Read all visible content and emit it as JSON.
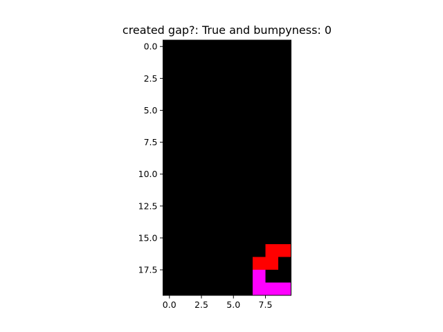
{
  "chart_data": {
    "type": "heatmap",
    "title": "created gap?: True and bumpyness: 0",
    "xlabel": "",
    "ylabel": "",
    "grid": false,
    "rows": 20,
    "cols": 10,
    "xlim": [
      -0.5,
      9.5
    ],
    "ylim": [
      19.5,
      -0.5
    ],
    "x_ticks": [
      0.0,
      2.5,
      5.0,
      7.5
    ],
    "x_tick_labels": [
      "0.0",
      "2.5",
      "5.0",
      "7.5"
    ],
    "y_ticks": [
      0.0,
      2.5,
      5.0,
      7.5,
      10.0,
      12.5,
      15.0,
      17.5
    ],
    "y_tick_labels": [
      "0.0",
      "2.5",
      "5.0",
      "7.5",
      "10.0",
      "12.5",
      "15.0",
      "17.5"
    ],
    "background_color": "#000000",
    "colors": {
      "red": "#ff0000",
      "magenta": "#ff00ff"
    },
    "cells": [
      {
        "row": 16,
        "col": 8,
        "color": "red"
      },
      {
        "row": 16,
        "col": 9,
        "color": "red"
      },
      {
        "row": 17,
        "col": 7,
        "color": "red"
      },
      {
        "row": 17,
        "col": 8,
        "color": "red"
      },
      {
        "row": 18,
        "col": 7,
        "color": "magenta"
      },
      {
        "row": 19,
        "col": 7,
        "color": "magenta"
      },
      {
        "row": 19,
        "col": 8,
        "color": "magenta"
      },
      {
        "row": 19,
        "col": 9,
        "color": "magenta"
      }
    ]
  }
}
